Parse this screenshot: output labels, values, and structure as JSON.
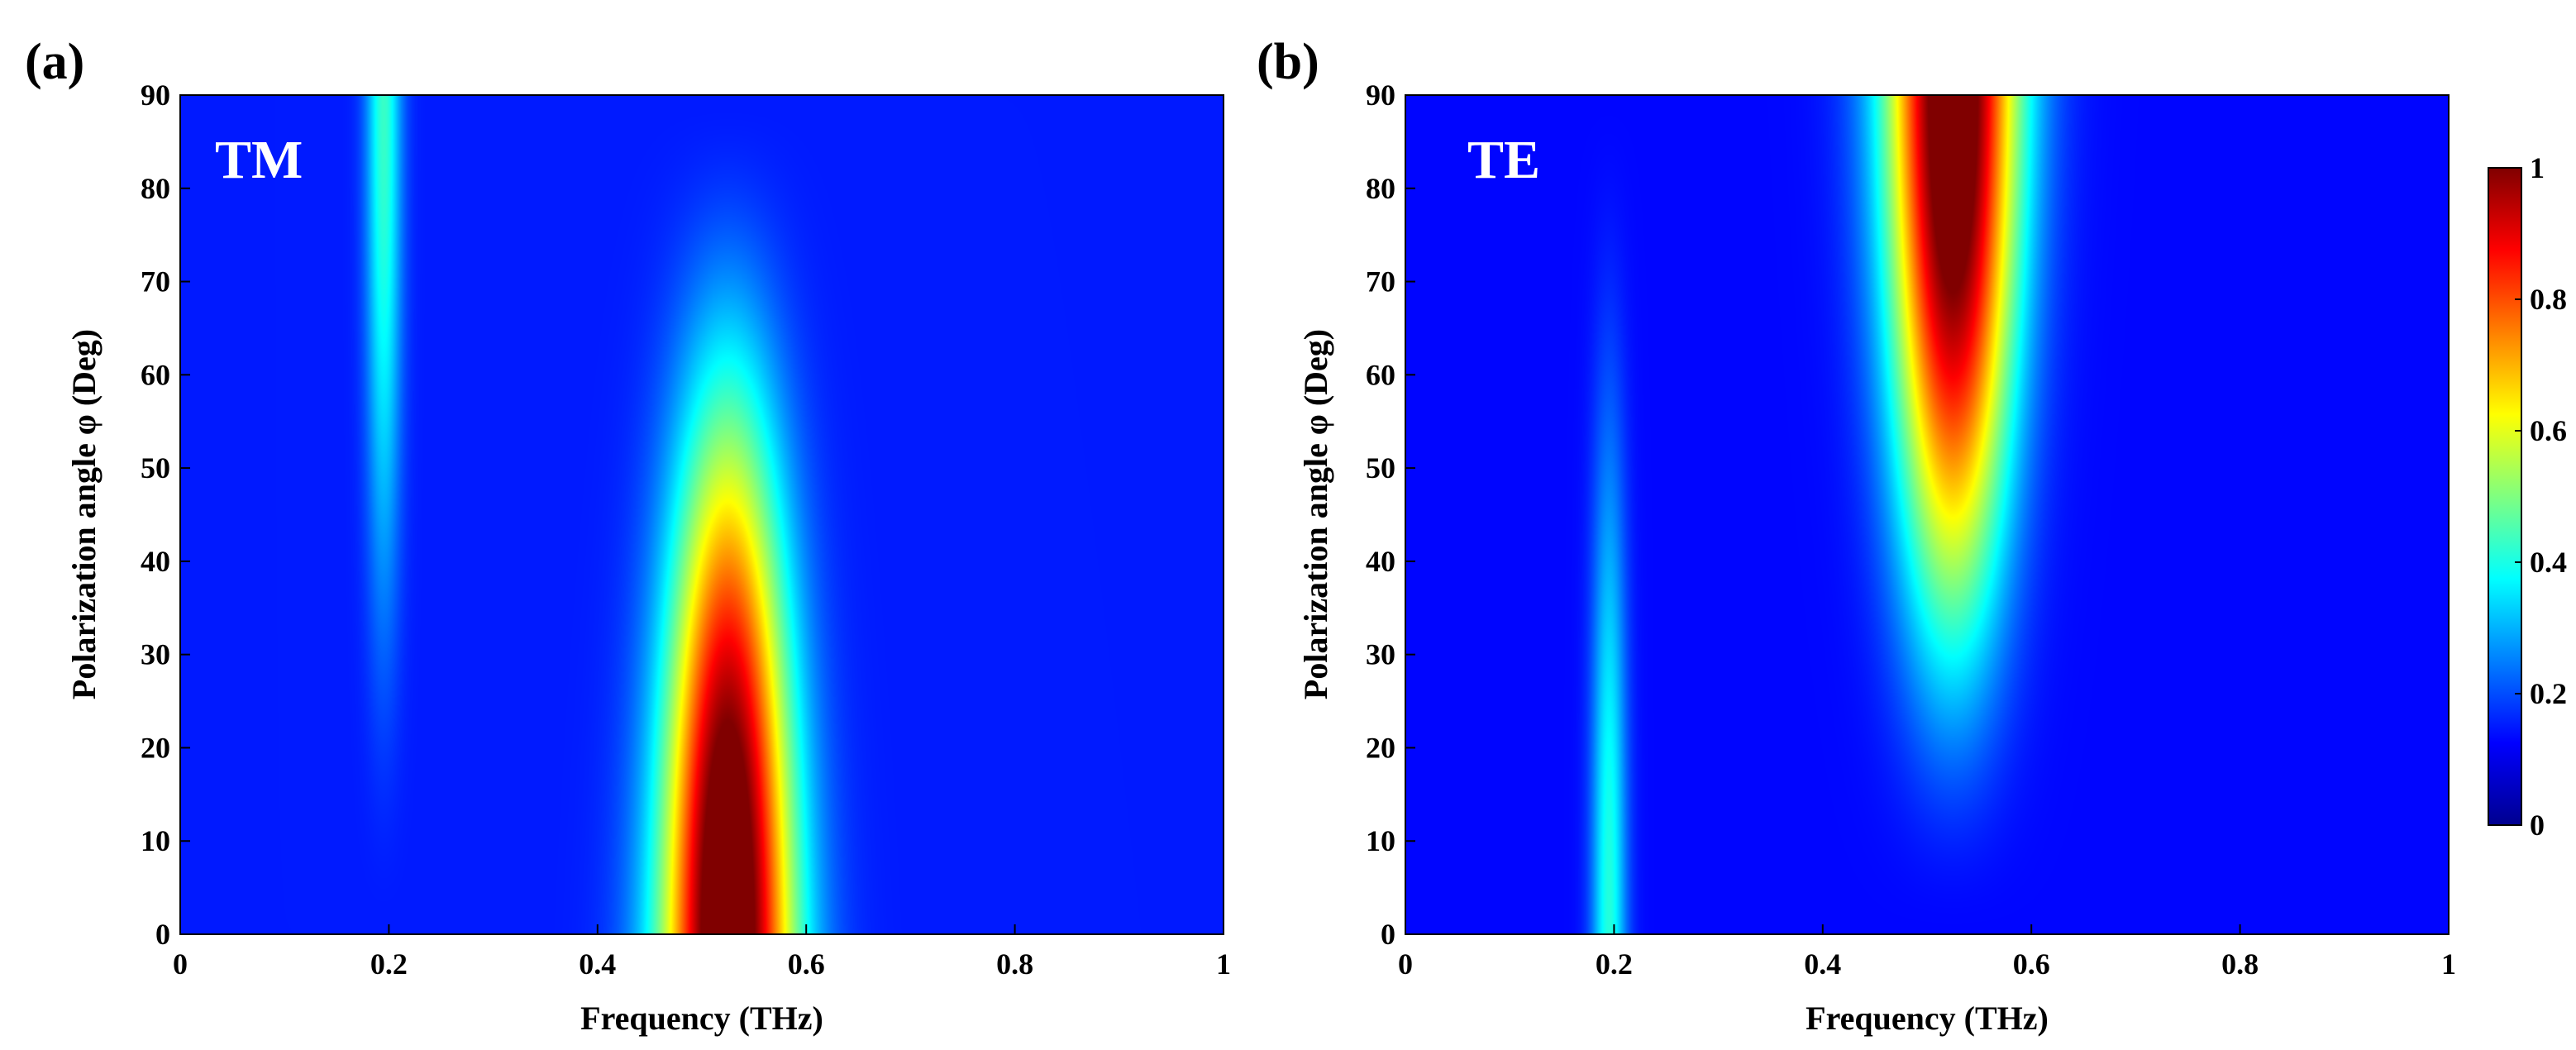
{
  "chart_data": [
    {
      "type": "heatmap",
      "panel_label": "(a)",
      "inset_label": "TM",
      "xlabel": "Frequency (THz)",
      "ylabel": "Polarization angle φ (Deg)",
      "xlim": [
        0,
        1
      ],
      "ylim": [
        0,
        90
      ],
      "xticks": [
        "0",
        "0.2",
        "0.4",
        "0.6",
        "0.8",
        "1"
      ],
      "yticks": [
        "0",
        "10",
        "20",
        "30",
        "40",
        "50",
        "60",
        "70",
        "80",
        "90"
      ],
      "baseline": 0.15,
      "features": [
        {
          "name": "main resonance",
          "center_freq": 0.525,
          "peak_value": 1.0,
          "peak_angle": 0,
          "width_thz_at_0deg": 0.045,
          "width_thz_at_90deg": 0.035,
          "amplitude_law": "cos^2(angle)"
        },
        {
          "name": "weak resonance",
          "center_freq": 0.195,
          "peak_value": 0.28,
          "peak_angle": 90,
          "width_thz": 0.012,
          "amplitude_law": "sin^2(angle)"
        }
      ]
    },
    {
      "type": "heatmap",
      "panel_label": "(b)",
      "inset_label": "TE",
      "xlabel": "Frequency (THz)",
      "ylabel": "Polarization angle φ (Deg)",
      "xlim": [
        0,
        1
      ],
      "ylim": [
        0,
        90
      ],
      "xticks": [
        "0",
        "0.2",
        "0.4",
        "0.6",
        "0.8",
        "1"
      ],
      "yticks": [
        "0",
        "10",
        "20",
        "30",
        "40",
        "50",
        "60",
        "70",
        "80",
        "90"
      ],
      "baseline": 0.13,
      "features": [
        {
          "name": "main resonance",
          "center_freq": 0.525,
          "peak_value": 1.0,
          "peak_angle": 90,
          "width_thz_at_0deg": 0.035,
          "width_thz_at_90deg": 0.045,
          "amplitude_law": "sin^2(angle)"
        },
        {
          "name": "weak resonance",
          "center_freq": 0.195,
          "peak_value": 0.28,
          "peak_angle": 0,
          "width_thz": 0.012,
          "amplitude_law": "cos^2(angle)"
        }
      ]
    }
  ],
  "colorbar": {
    "colormap": "jet",
    "range": [
      0,
      1
    ],
    "ticks": [
      "0",
      "0.2",
      "0.4",
      "0.6",
      "0.8",
      "1"
    ]
  }
}
